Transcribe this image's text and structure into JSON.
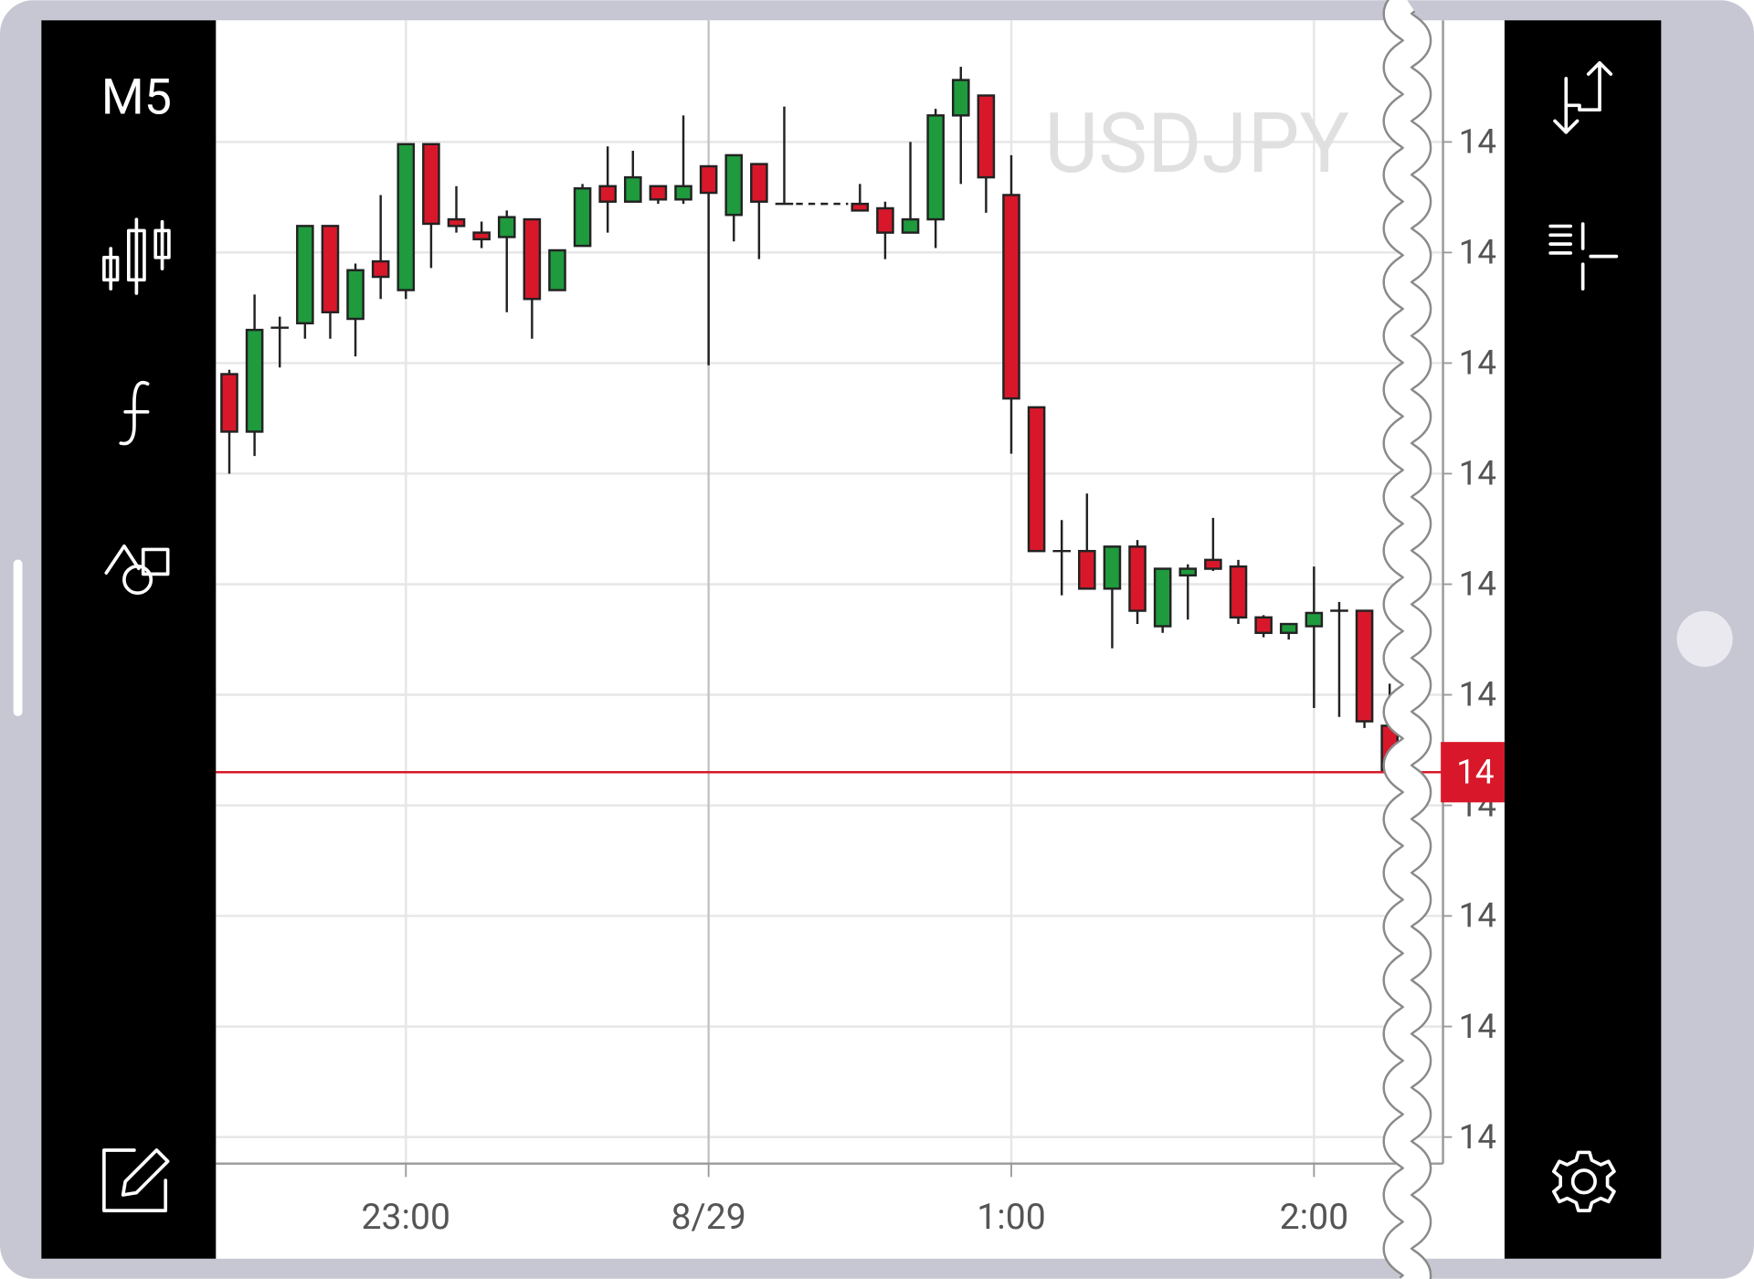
{
  "toolbar": {
    "timeframe": "M5"
  },
  "chart_data": {
    "type": "candlestick",
    "title": "USDJPY",
    "categories": [
      null,
      null,
      null,
      null,
      null,
      null,
      null,
      "23:00",
      null,
      null,
      null,
      null,
      null,
      null,
      null,
      null,
      null,
      null,
      null,
      "8/29",
      null,
      null,
      null,
      null,
      null,
      null,
      null,
      null,
      null,
      null,
      null,
      "1:00",
      null,
      null,
      null,
      null,
      null,
      null,
      null,
      null,
      null,
      null,
      null,
      "2:00",
      null,
      null,
      null
    ],
    "open": [
      146.495,
      146.469,
      146.516,
      146.518,
      146.562,
      146.52,
      146.546,
      146.533,
      146.599,
      146.565,
      146.559,
      146.557,
      146.565,
      146.533,
      146.553,
      146.58,
      146.573,
      146.58,
      146.574,
      146.589,
      146.567,
      146.59,
      146.572,
      146.572,
      146.572,
      146.572,
      146.57,
      146.559,
      146.565,
      146.612,
      146.621,
      146.576,
      146.48,
      146.415,
      146.415,
      146.398,
      146.417,
      146.381,
      146.404,
      146.411,
      146.408,
      146.385,
      146.378,
      146.381,
      146.388,
      146.388,
      146.336
    ],
    "high": [
      146.497,
      146.531,
      146.521,
      146.562,
      146.562,
      146.545,
      146.576,
      146.599,
      146.599,
      146.58,
      146.564,
      146.569,
      146.565,
      146.551,
      146.581,
      146.598,
      146.596,
      146.58,
      146.612,
      146.589,
      146.594,
      146.59,
      146.616,
      146.572,
      146.572,
      146.581,
      146.573,
      146.6,
      146.615,
      146.634,
      146.621,
      146.594,
      146.48,
      146.429,
      146.441,
      146.417,
      146.42,
      146.407,
      146.409,
      146.43,
      146.411,
      146.386,
      146.382,
      146.408,
      146.392,
      146.388,
      146.355
    ],
    "low": [
      146.45,
      146.458,
      146.498,
      146.511,
      146.511,
      146.503,
      146.529,
      146.529,
      146.543,
      146.559,
      146.552,
      146.523,
      146.511,
      146.533,
      146.553,
      146.559,
      146.573,
      146.572,
      146.572,
      146.499,
      146.555,
      146.547,
      146.572,
      146.572,
      146.572,
      146.569,
      146.547,
      146.559,
      146.552,
      146.581,
      146.568,
      146.459,
      146.415,
      146.395,
      146.398,
      146.371,
      146.382,
      146.378,
      146.384,
      146.406,
      146.382,
      146.376,
      146.375,
      146.344,
      146.34,
      146.335,
      146.313
    ],
    "close": [
      146.469,
      146.515,
      146.516,
      146.562,
      146.523,
      146.542,
      146.539,
      146.599,
      146.563,
      146.562,
      146.556,
      146.566,
      146.529,
      146.551,
      146.579,
      146.573,
      146.584,
      146.574,
      146.58,
      146.577,
      146.594,
      146.573,
      146.572,
      146.572,
      146.572,
      146.569,
      146.559,
      146.565,
      146.612,
      146.628,
      146.584,
      146.484,
      146.415,
      146.415,
      146.398,
      146.417,
      146.388,
      146.407,
      146.407,
      146.407,
      146.385,
      146.378,
      146.382,
      146.387,
      146.388,
      146.338,
      146.315
    ],
    "up_color": "#1f9a3d",
    "down_color": "#d8182a",
    "ylim": [
      146.138,
      146.655
    ],
    "yticks": [
      {
        "value": 146.6,
        "label": "14"
      },
      {
        "value": 146.55,
        "label": "14"
      },
      {
        "value": 146.5,
        "label": "14"
      },
      {
        "value": 146.45,
        "label": "14"
      },
      {
        "value": 146.4,
        "label": "14"
      },
      {
        "value": 146.35,
        "label": "14"
      },
      {
        "value": 146.3,
        "label": "14"
      },
      {
        "value": 146.25,
        "label": "14"
      },
      {
        "value": 146.2,
        "label": "14"
      },
      {
        "value": 146.15,
        "label": "14"
      }
    ],
    "grid": true,
    "current_price": {
      "value": 146.315,
      "label": "14",
      "color": "#d8182a"
    }
  }
}
